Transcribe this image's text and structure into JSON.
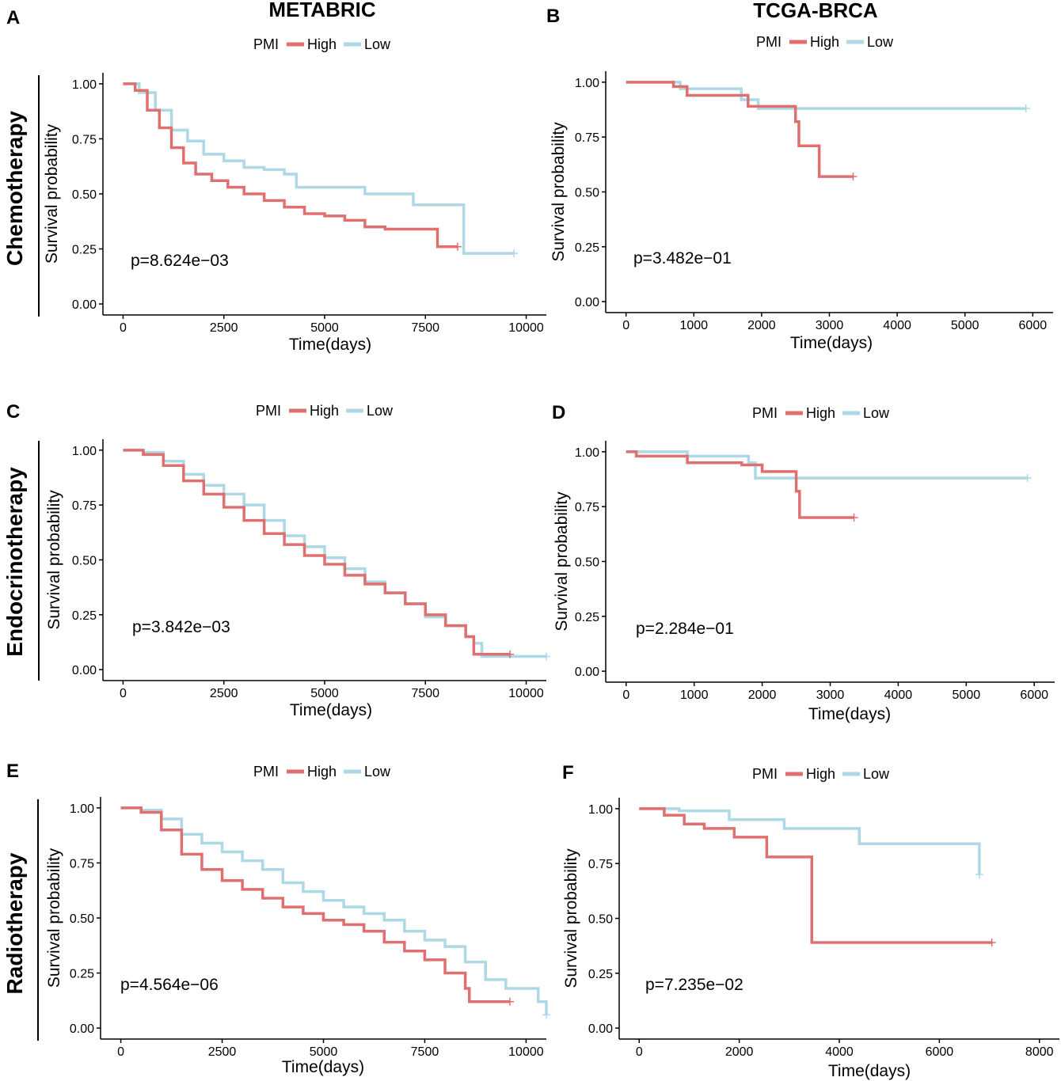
{
  "figure": {
    "column_titles": [
      "METABRIC",
      "TCGA-BRCA"
    ],
    "row_titles": [
      "Chemotherapy",
      "Endocrinotherapy",
      "Radiotherapy"
    ]
  },
  "colors": {
    "high": "#E07070",
    "low": "#ADD8E6"
  },
  "chart_data": [
    {
      "panel": "A",
      "type": "line",
      "subtype": "kaplan-meier",
      "cohort": "METABRIC",
      "therapy": "Chemotherapy",
      "legend_title": "PMI",
      "legend": [
        "High",
        "Low"
      ],
      "xlabel": "Time(days)",
      "ylabel": "Survival probability",
      "xlim": [
        -500,
        10500
      ],
      "ylim": [
        -0.05,
        1.05
      ],
      "xticks": [
        0,
        2500,
        5000,
        7500,
        10000
      ],
      "yticks": [
        0,
        0.25,
        0.5,
        0.75,
        1.0
      ],
      "ytick_labels": [
        "0.00",
        "0.25",
        "0.50",
        "0.75",
        "1.00"
      ],
      "pvalue": "p=8.624e−03",
      "series": [
        {
          "name": "High",
          "x": [
            0,
            300,
            600,
            900,
            1200,
            1500,
            1800,
            2200,
            2600,
            3000,
            3500,
            4000,
            4500,
            5000,
            5500,
            6000,
            6500,
            7000,
            7700,
            7800,
            8300
          ],
          "y": [
            1.0,
            0.97,
            0.88,
            0.8,
            0.71,
            0.64,
            0.59,
            0.56,
            0.53,
            0.5,
            0.47,
            0.44,
            0.41,
            0.4,
            0.38,
            0.35,
            0.34,
            0.34,
            0.34,
            0.26,
            0.26
          ]
        },
        {
          "name": "Low",
          "x": [
            0,
            400,
            800,
            1200,
            1600,
            2000,
            2500,
            3000,
            3500,
            4000,
            4300,
            5000,
            6000,
            7200,
            8400,
            8450,
            9700
          ],
          "y": [
            1.0,
            0.96,
            0.88,
            0.79,
            0.74,
            0.68,
            0.65,
            0.62,
            0.61,
            0.59,
            0.53,
            0.53,
            0.5,
            0.45,
            0.45,
            0.23,
            0.23
          ]
        }
      ]
    },
    {
      "panel": "B",
      "type": "line",
      "subtype": "kaplan-meier",
      "cohort": "TCGA-BRCA",
      "therapy": "Chemotherapy",
      "legend_title": "PMI",
      "legend": [
        "High",
        "Low"
      ],
      "xlabel": "Time(days)",
      "ylabel": "Survival probability",
      "xlim": [
        -300,
        6300
      ],
      "ylim": [
        -0.05,
        1.05
      ],
      "xticks": [
        0,
        1000,
        2000,
        3000,
        4000,
        5000,
        6000
      ],
      "yticks": [
        0,
        0.25,
        0.5,
        0.75,
        1.0
      ],
      "ytick_labels": [
        "0.00",
        "0.25",
        "0.50",
        "0.75",
        "1.00"
      ],
      "pvalue": "p=3.482e−01",
      "series": [
        {
          "name": "High",
          "x": [
            0,
            700,
            900,
            1800,
            2450,
            2500,
            2550,
            2800,
            2850,
            3350
          ],
          "y": [
            1.0,
            0.98,
            0.94,
            0.89,
            0.89,
            0.82,
            0.71,
            0.71,
            0.57,
            0.57
          ]
        },
        {
          "name": "Low",
          "x": [
            0,
            800,
            1700,
            1950,
            5900
          ],
          "y": [
            1.0,
            0.97,
            0.92,
            0.88,
            0.88
          ]
        }
      ]
    },
    {
      "panel": "C",
      "type": "line",
      "subtype": "kaplan-meier",
      "cohort": "METABRIC",
      "therapy": "Endocrinotherapy",
      "legend_title": "PMI",
      "legend": [
        "High",
        "Low"
      ],
      "xlabel": "Time(days)",
      "ylabel": "Survival probability",
      "xlim": [
        -500,
        10500
      ],
      "ylim": [
        -0.05,
        1.05
      ],
      "xticks": [
        0,
        2500,
        5000,
        7500,
        10000
      ],
      "yticks": [
        0,
        0.25,
        0.5,
        0.75,
        1.0
      ],
      "ytick_labels": [
        "0.00",
        "0.25",
        "0.50",
        "0.75",
        "1.00"
      ],
      "pvalue": "p=3.842e−03",
      "series": [
        {
          "name": "High",
          "x": [
            0,
            500,
            1000,
            1500,
            2000,
            2500,
            3000,
            3500,
            4000,
            4500,
            5000,
            5500,
            6000,
            6500,
            7000,
            7500,
            8000,
            8500,
            8700,
            9000,
            9600
          ],
          "y": [
            1.0,
            0.98,
            0.93,
            0.86,
            0.8,
            0.74,
            0.68,
            0.62,
            0.57,
            0.52,
            0.48,
            0.43,
            0.39,
            0.35,
            0.3,
            0.25,
            0.2,
            0.15,
            0.07,
            0.07,
            0.07
          ]
        },
        {
          "name": "Low",
          "x": [
            0,
            500,
            1000,
            1500,
            2000,
            2500,
            3000,
            3500,
            4000,
            4500,
            5000,
            5500,
            6000,
            6500,
            7000,
            7500,
            8000,
            8500,
            8700,
            8900,
            10500
          ],
          "y": [
            1.0,
            0.99,
            0.95,
            0.89,
            0.84,
            0.8,
            0.75,
            0.68,
            0.61,
            0.56,
            0.51,
            0.46,
            0.4,
            0.35,
            0.3,
            0.24,
            0.2,
            0.15,
            0.12,
            0.06,
            0.06
          ]
        }
      ]
    },
    {
      "panel": "D",
      "type": "line",
      "subtype": "kaplan-meier",
      "cohort": "TCGA-BRCA",
      "therapy": "Endocrinotherapy",
      "legend_title": "PMI",
      "legend": [
        "High",
        "Low"
      ],
      "xlabel": "Time(days)",
      "ylabel": "Survival probability",
      "xlim": [
        -300,
        6300
      ],
      "ylim": [
        -0.05,
        1.05
      ],
      "xticks": [
        0,
        1000,
        2000,
        3000,
        4000,
        5000,
        6000
      ],
      "yticks": [
        0,
        0.25,
        0.5,
        0.75,
        1.0
      ],
      "ytick_labels": [
        "0.00",
        "0.25",
        "0.50",
        "0.75",
        "1.00"
      ],
      "pvalue": "p=2.284e−01",
      "series": [
        {
          "name": "High",
          "x": [
            0,
            150,
            900,
            1700,
            2000,
            2450,
            2500,
            2550,
            3350
          ],
          "y": [
            1.0,
            0.98,
            0.95,
            0.94,
            0.91,
            0.91,
            0.82,
            0.7,
            0.7
          ]
        },
        {
          "name": "Low",
          "x": [
            0,
            900,
            1800,
            1900,
            5900
          ],
          "y": [
            1.0,
            0.98,
            0.95,
            0.88,
            0.88
          ]
        }
      ]
    },
    {
      "panel": "E",
      "type": "line",
      "subtype": "kaplan-meier",
      "cohort": "METABRIC",
      "therapy": "Radiotherapy",
      "legend_title": "PMI",
      "legend": [
        "High",
        "Low"
      ],
      "xlabel": "Time(days)",
      "ylabel": "Survival probability",
      "xlim": [
        -500,
        10500
      ],
      "ylim": [
        -0.05,
        1.05
      ],
      "xticks": [
        0,
        2500,
        5000,
        7500,
        10000
      ],
      "yticks": [
        0,
        0.25,
        0.5,
        0.75,
        1.0
      ],
      "ytick_labels": [
        "0.00",
        "0.25",
        "0.50",
        "0.75",
        "1.00"
      ],
      "pvalue": "p=4.564e−06",
      "series": [
        {
          "name": "High",
          "x": [
            0,
            500,
            1000,
            1500,
            2000,
            2500,
            3000,
            3500,
            4000,
            4500,
            5000,
            5500,
            6000,
            6500,
            7000,
            7500,
            8000,
            8500,
            8600,
            9600
          ],
          "y": [
            1.0,
            0.98,
            0.9,
            0.79,
            0.72,
            0.67,
            0.63,
            0.59,
            0.55,
            0.52,
            0.49,
            0.47,
            0.44,
            0.39,
            0.35,
            0.31,
            0.25,
            0.18,
            0.12,
            0.12
          ]
        },
        {
          "name": "Low",
          "x": [
            0,
            500,
            1000,
            1500,
            2000,
            2500,
            3000,
            3500,
            4000,
            4500,
            5000,
            5500,
            6000,
            6500,
            7000,
            7500,
            8000,
            8500,
            9000,
            9500,
            10300,
            10500
          ],
          "y": [
            1.0,
            0.99,
            0.95,
            0.88,
            0.84,
            0.8,
            0.76,
            0.72,
            0.66,
            0.62,
            0.58,
            0.55,
            0.52,
            0.49,
            0.44,
            0.4,
            0.37,
            0.3,
            0.22,
            0.18,
            0.12,
            0.06
          ]
        }
      ]
    },
    {
      "panel": "F",
      "type": "line",
      "subtype": "kaplan-meier",
      "cohort": "TCGA-BRCA",
      "therapy": "Radiotherapy",
      "legend_title": "PMI",
      "legend": [
        "High",
        "Low"
      ],
      "xlabel": "Time(days)",
      "ylabel": "Survival probability",
      "xlim": [
        -400,
        8400
      ],
      "ylim": [
        -0.05,
        1.05
      ],
      "xticks": [
        0,
        2000,
        4000,
        6000,
        8000
      ],
      "yticks": [
        0,
        0.25,
        0.5,
        0.75,
        1.0
      ],
      "ytick_labels": [
        "0.00",
        "0.25",
        "0.50",
        "0.75",
        "1.00"
      ],
      "pvalue": "p=7.235e−02",
      "series": [
        {
          "name": "High",
          "x": [
            0,
            500,
            900,
            1300,
            1900,
            2550,
            3450,
            7050
          ],
          "y": [
            1.0,
            0.97,
            0.93,
            0.91,
            0.87,
            0.78,
            0.39,
            0.39
          ]
        },
        {
          "name": "Low",
          "x": [
            0,
            800,
            1800,
            2900,
            4400,
            6800
          ],
          "y": [
            1.0,
            0.99,
            0.95,
            0.91,
            0.84,
            0.7
          ]
        }
      ]
    }
  ]
}
